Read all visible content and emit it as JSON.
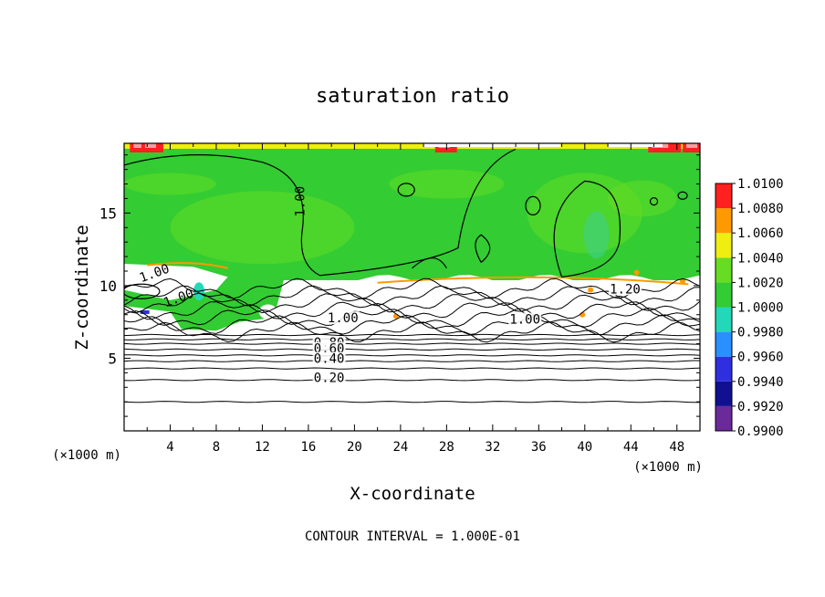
{
  "chart_data": {
    "type": "heatmap",
    "title": "saturation ratio",
    "xlabel": "X-coordinate",
    "ylabel": "Z-coordinate",
    "x_unit": "(×1000 m)",
    "y_unit": "(×1000 m)",
    "footer": "CONTOUR INTERVAL = 1.000E-01",
    "xlim": [
      0,
      50
    ],
    "ylim": [
      0,
      19.8
    ],
    "x_ticks": [
      4,
      8,
      12,
      16,
      20,
      24,
      28,
      32,
      36,
      40,
      44,
      48
    ],
    "x_tick_labels": [
      "4",
      "8",
      "12",
      "16",
      "20",
      "24",
      "28",
      "32",
      "36",
      "40",
      "44",
      "48"
    ],
    "y_ticks": [
      5,
      10,
      15
    ],
    "y_tick_labels": [
      "5",
      "10",
      "15"
    ],
    "colorbar": {
      "levels": [
        0.99,
        0.992,
        0.994,
        0.996,
        0.998,
        1.0,
        1.002,
        1.004,
        1.006,
        1.008,
        1.01
      ],
      "labels": [
        "0.9900",
        "0.9920",
        "0.9940",
        "0.9960",
        "0.9980",
        "1.0000",
        "1.0020",
        "1.0040",
        "1.0060",
        "1.0080",
        "1.0100"
      ],
      "colors": [
        "#6a2a9a",
        "#101090",
        "#2f2fe0",
        "#2a90ff",
        "#22d8b8",
        "#33cc33",
        "#66dd22",
        "#eeee10",
        "#ff9900",
        "#ff2020",
        "#f2a0a0"
      ]
    },
    "contour_interval": 0.1,
    "contour_labels": [
      {
        "text": "1.00",
        "x": 15.5,
        "y": 15.8
      },
      {
        "text": "1.00",
        "x": 2.7,
        "y": 10.7
      },
      {
        "text": "1.00",
        "x": 4.8,
        "y": 9.0
      },
      {
        "text": "1.00",
        "x": 19.0,
        "y": 7.6
      },
      {
        "text": "1.00",
        "x": 34.8,
        "y": 7.5
      },
      {
        "text": "1.20",
        "x": 43.5,
        "y": 9.6
      },
      {
        "text": "0.80",
        "x": 17.8,
        "y": 5.9
      },
      {
        "text": "0.60",
        "x": 17.8,
        "y": 5.5
      },
      {
        "text": "0.40",
        "x": 17.8,
        "y": 4.8
      },
      {
        "text": "0.20",
        "x": 17.8,
        "y": 3.5
      }
    ],
    "stratified_contours_z": [
      2.0,
      3.5,
      4.3,
      4.8,
      5.2,
      5.6,
      6.0,
      6.3,
      6.6
    ],
    "cloud_top_z": 10.5,
    "field_description_regions": [
      {
        "z_range": [
          10.5,
          19.8
        ],
        "value": 1.0
      },
      {
        "z_range": [
          0,
          10.5
        ],
        "value": null
      }
    ]
  }
}
